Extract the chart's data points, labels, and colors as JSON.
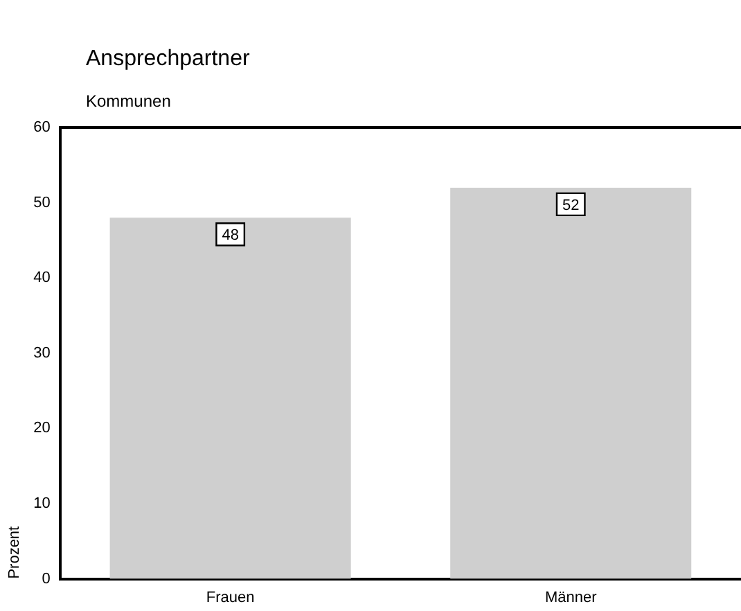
{
  "chart_data": {
    "type": "bar",
    "title": "Ansprechpartner",
    "subtitle": "Kommunen",
    "ylabel": "Prozent",
    "categories": [
      "Frauen",
      "Männer"
    ],
    "values": [
      48,
      52
    ],
    "color": "#cfcfcf",
    "ylim": [
      0,
      60
    ],
    "yticks": [
      0,
      10,
      20,
      30,
      40,
      50,
      60
    ],
    "grid": false,
    "legend": false,
    "data_labels": true
  }
}
